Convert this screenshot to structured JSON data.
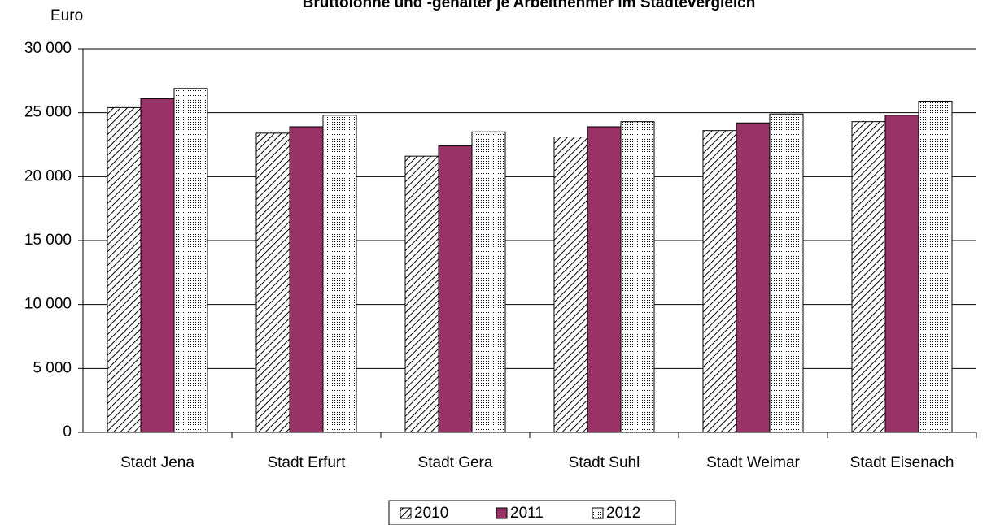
{
  "chart_data": {
    "type": "bar",
    "title": "Bruttolöhne und -gehälter je Arbeitnehmer im Städtevergleich",
    "y_label": "Euro",
    "categories": [
      "Stadt Jena",
      "Stadt Erfurt",
      "Stadt Gera",
      "Stadt Suhl",
      "Stadt Weimar",
      "Stadt Eisenach"
    ],
    "series": [
      {
        "name": "2010",
        "color": "#000000",
        "pattern": "hatch",
        "values": [
          25400,
          23400,
          21600,
          23100,
          23600,
          24300
        ]
      },
      {
        "name": "2011",
        "color": "#993366",
        "pattern": "solid",
        "values": [
          26100,
          23900,
          22400,
          23900,
          24200,
          24800
        ]
      },
      {
        "name": "2012",
        "color": "#000000",
        "pattern": "dots",
        "values": [
          26900,
          24800,
          23500,
          24300,
          24900,
          25900
        ]
      }
    ],
    "ylim": [
      0,
      30000
    ],
    "yticks": [
      {
        "value": 0,
        "label": "0"
      },
      {
        "value": 5000,
        "label": "5 000"
      },
      {
        "value": 10000,
        "label": "10 000"
      },
      {
        "value": 15000,
        "label": "15 000"
      },
      {
        "value": 20000,
        "label": "20 000"
      },
      {
        "value": 25000,
        "label": "25 000"
      },
      {
        "value": 30000,
        "label": "30 000"
      }
    ],
    "grid": true,
    "legend": "bottom"
  }
}
